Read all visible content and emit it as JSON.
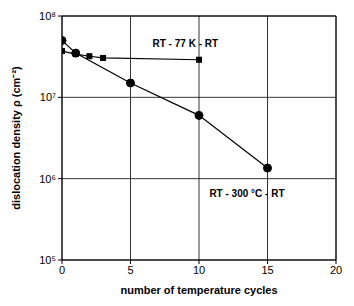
{
  "chart_data": {
    "type": "line",
    "x_label": "number of temperature cycles",
    "y_label": "dislocation density ρ (cm⁻²)",
    "log": "y",
    "grid": true,
    "xlim": [
      0,
      20
    ],
    "xticks": [
      0,
      5,
      10,
      15,
      20
    ],
    "ylim": [
      100000,
      100000000
    ],
    "yticks": [
      {
        "value": 100000,
        "label": "10⁵"
      },
      {
        "value": 1000000,
        "label": "10⁶"
      },
      {
        "value": 10000000,
        "label": "10⁷"
      },
      {
        "value": 100000000,
        "label": "10⁸"
      }
    ],
    "series": [
      {
        "name": "RT - 77 K - RT",
        "color": "#000000",
        "marker": "square",
        "x": [
          0,
          1,
          2,
          3,
          10
        ],
        "values": [
          37000000,
          34000000,
          32000000,
          30500000,
          29000000
        ]
      },
      {
        "name": "RT - 300 °C - RT",
        "color": "#000000",
        "marker": "circle",
        "x": [
          0,
          1,
          5,
          10,
          15
        ],
        "values": [
          50000000,
          35000000,
          15000000,
          6000000,
          1350000
        ]
      }
    ],
    "annotations": [
      {
        "text": "RT - 77 K - RT",
        "x": 9,
        "y": 46000000
      },
      {
        "text": "RT - 300 °C - RT",
        "x": 13.5,
        "y": 650000
      }
    ]
  }
}
